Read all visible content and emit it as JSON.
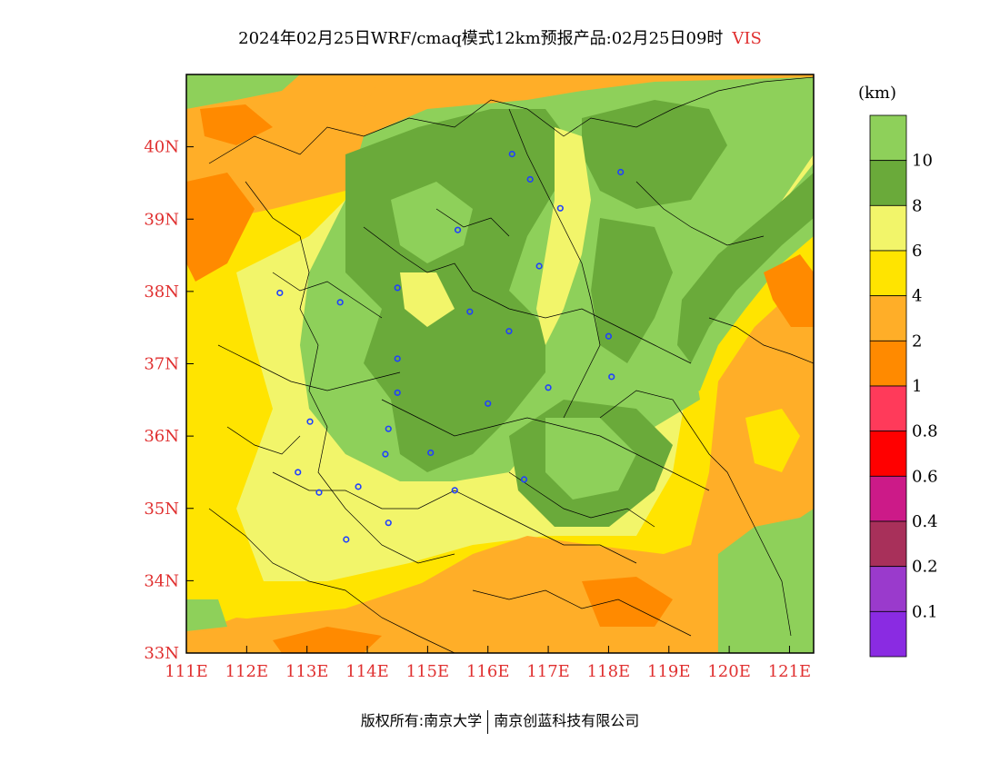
{
  "title": {
    "main": "2024年02月25日WRF/cmaq模式12km预报产品:02月25日09时",
    "variable": "VIS"
  },
  "colorbar": {
    "unit": "(km)",
    "levels": [
      {
        "label": "",
        "color": "#8ed05a"
      },
      {
        "label": "10",
        "color": "#6aaa3a"
      },
      {
        "label": "8",
        "color": "#f2f56a"
      },
      {
        "label": "6",
        "color": "#ffe400"
      },
      {
        "label": "4",
        "color": "#ffae28"
      },
      {
        "label": "2",
        "color": "#ff8a00"
      },
      {
        "label": "1",
        "color": "#ff3a5a"
      },
      {
        "label": "0.8",
        "color": "#ff0000"
      },
      {
        "label": "0.6",
        "color": "#cc1a88"
      },
      {
        "label": "0.4",
        "color": "#a8305a"
      },
      {
        "label": "0.2",
        "color": "#9a3acc"
      },
      {
        "label": "0.1",
        "color": "#8a2be2"
      }
    ]
  },
  "map": {
    "lon_range": [
      111,
      121.4
    ],
    "lat_range": [
      33,
      41
    ],
    "lon_ticks": [
      "111E",
      "112E",
      "113E",
      "114E",
      "115E",
      "116E",
      "117E",
      "118E",
      "119E",
      "120E",
      "121E"
    ],
    "lat_ticks": [
      "33N",
      "34N",
      "35N",
      "36N",
      "37N",
      "38N",
      "39N",
      "40N"
    ],
    "axis_label_color": "#e03030",
    "stations": [
      {
        "lon": 116.4,
        "lat": 39.9
      },
      {
        "lon": 116.7,
        "lat": 39.55
      },
      {
        "lon": 118.2,
        "lat": 39.65
      },
      {
        "lon": 117.2,
        "lat": 39.15
      },
      {
        "lon": 115.5,
        "lat": 38.85
      },
      {
        "lon": 116.85,
        "lat": 38.35
      },
      {
        "lon": 112.55,
        "lat": 37.98
      },
      {
        "lon": 113.55,
        "lat": 37.85
      },
      {
        "lon": 114.5,
        "lat": 38.05
      },
      {
        "lon": 115.7,
        "lat": 37.72
      },
      {
        "lon": 116.35,
        "lat": 37.45
      },
      {
        "lon": 118.0,
        "lat": 37.38
      },
      {
        "lon": 114.5,
        "lat": 37.07
      },
      {
        "lon": 114.5,
        "lat": 36.6
      },
      {
        "lon": 116.0,
        "lat": 36.45
      },
      {
        "lon": 117.0,
        "lat": 36.67
      },
      {
        "lon": 118.05,
        "lat": 36.82
      },
      {
        "lon": 113.05,
        "lat": 36.2
      },
      {
        "lon": 114.35,
        "lat": 36.1
      },
      {
        "lon": 114.3,
        "lat": 35.75
      },
      {
        "lon": 115.05,
        "lat": 35.77
      },
      {
        "lon": 112.85,
        "lat": 35.5
      },
      {
        "lon": 113.2,
        "lat": 35.22
      },
      {
        "lon": 113.85,
        "lat": 35.3
      },
      {
        "lon": 115.45,
        "lat": 35.25
      },
      {
        "lon": 116.6,
        "lat": 35.4
      },
      {
        "lon": 114.35,
        "lat": 34.8
      },
      {
        "lon": 113.65,
        "lat": 34.57
      }
    ]
  },
  "footer": {
    "left": "版权所有:南京大学",
    "right": "南京创蓝科技有限公司"
  }
}
